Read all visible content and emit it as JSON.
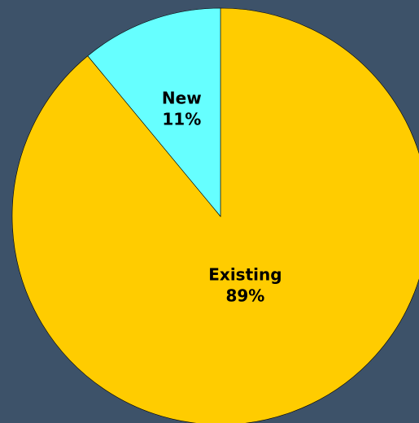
{
  "chart_data": {
    "type": "pie",
    "title": "",
    "legend": "none",
    "start_angle_deg": 0,
    "direction": "clockwise",
    "slices": [
      {
        "label": "Existing",
        "value": 89,
        "value_label": "89%",
        "color": "#ffcc00"
      },
      {
        "label": "New",
        "value": 11,
        "value_label": "11%",
        "color": "#66ffff"
      }
    ]
  },
  "colors": {
    "background": "#3d5269",
    "slice_border": "#000000"
  }
}
